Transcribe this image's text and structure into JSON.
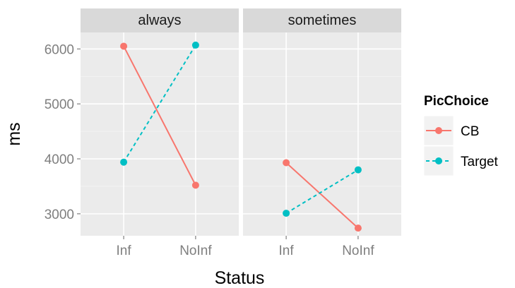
{
  "chart_data": {
    "type": "line",
    "xlabel": "Status",
    "ylabel": "ms",
    "categories": [
      "Inf",
      "NoInf"
    ],
    "ylim": [
      2600,
      6300
    ],
    "yticks": [
      3000,
      4000,
      5000,
      6000
    ],
    "y_tick_labels": [
      "3000",
      "4000",
      "5000",
      "6000"
    ],
    "grid": true,
    "legend": {
      "title": "PicChoice",
      "position": "right",
      "entries": [
        "CB",
        "Target"
      ]
    },
    "facets": [
      {
        "label": "always",
        "series": [
          {
            "name": "CB",
            "values": [
              6050,
              3520
            ]
          },
          {
            "name": "Target",
            "values": [
              3940,
              6070
            ]
          }
        ]
      },
      {
        "label": "sometimes",
        "series": [
          {
            "name": "CB",
            "values": [
              3930,
              2740
            ]
          },
          {
            "name": "Target",
            "values": [
              3010,
              3800
            ]
          }
        ]
      }
    ],
    "series_styles": [
      {
        "name": "CB",
        "color": "#F8766D",
        "dash": "solid"
      },
      {
        "name": "Target",
        "color": "#00BFC4",
        "dash": "dashed"
      }
    ],
    "panel_background": "#EBEBEB",
    "strip_background": "#D9D9D9"
  }
}
